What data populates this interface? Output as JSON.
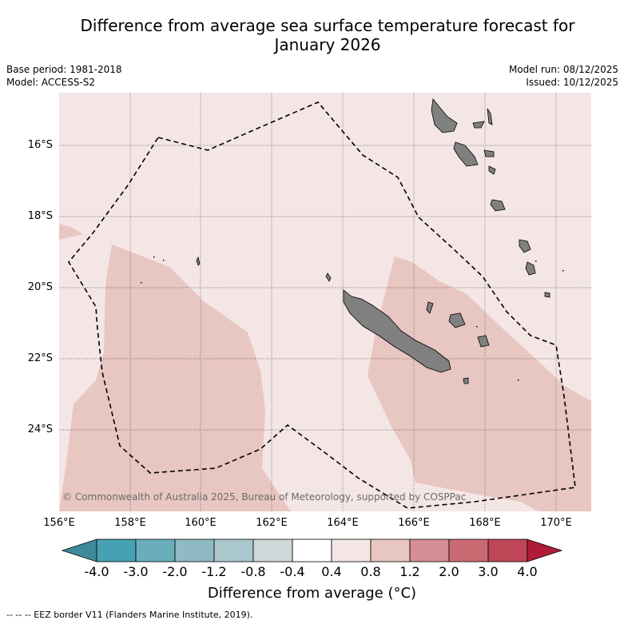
{
  "header": {
    "title_line1": "Difference from average sea surface temperature forecast for",
    "title_line2": "January 2026",
    "base_period": "Base period: 1981-2018",
    "model": "Model: ACCESS-S2",
    "model_run": "Model run: 08/12/2025",
    "issued": "Issued: 10/12/2025"
  },
  "map": {
    "copyright": "© Commonwealth of Australia 2025, Bureau of Meteorology, supported by COSPPac",
    "lat_labels": [
      "16°S",
      "18°S",
      "20°S",
      "22°S",
      "24°S"
    ],
    "lon_labels": [
      "156°E",
      "158°E",
      "160°E",
      "162°E",
      "164°E",
      "166°E",
      "168°E",
      "170°E"
    ],
    "extent": {
      "lon_min": 156,
      "lon_max": 171,
      "lat_min": -26,
      "lat_max": -14.5
    },
    "fill_colors": {
      "light": "#f4e6e4",
      "medium": "#e8c6c1",
      "land": "#808080"
    }
  },
  "colorbar": {
    "title": "Difference from average (°C)",
    "tick_labels": [
      "-4.0",
      "-3.0",
      "-2.0",
      "-1.2",
      "-0.8",
      "-0.4",
      "0.4",
      "0.8",
      "1.2",
      "2.0",
      "3.0",
      "4.0"
    ],
    "colors": [
      "#3d8a99",
      "#46a2b2",
      "#6aaebb",
      "#8fbac4",
      "#a9c7cc",
      "#cfd9d9",
      "#ffffff",
      "#f4e6e4",
      "#e8c6c1",
      "#d68e95",
      "#cc6a73",
      "#be4656",
      "#ae1c3a"
    ]
  },
  "footer": {
    "legend": "--  --  -- EEZ border V11 (Flanders Marine Institute, 2019)."
  }
}
